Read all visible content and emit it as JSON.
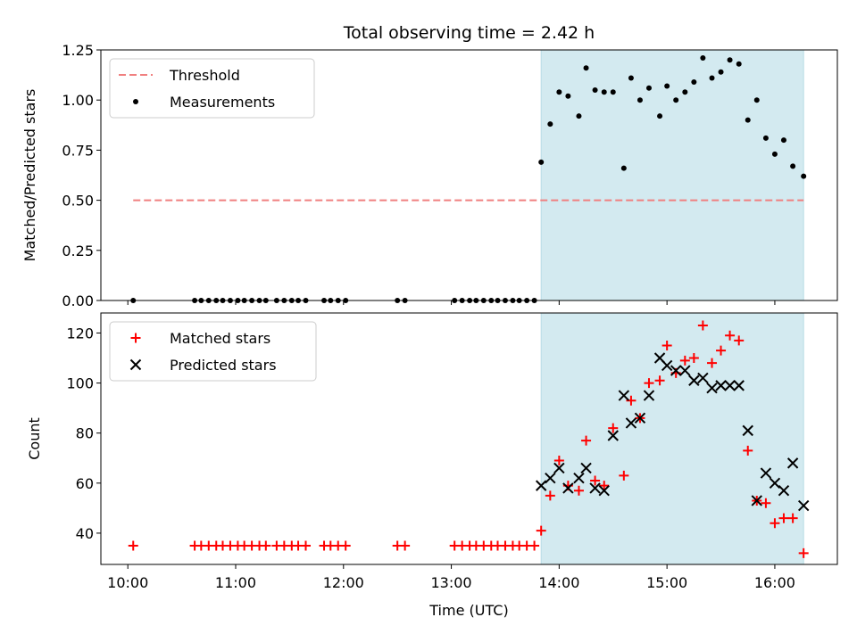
{
  "chart_data": [
    {
      "type": "scatter",
      "title": "Total observing time = 2.42 h",
      "xlabel": "",
      "ylabel": "Matched/Predicted stars",
      "ylim": [
        0,
        1.25
      ],
      "yticks": [
        "0.00",
        "0.25",
        "0.50",
        "0.75",
        "1.00",
        "1.25"
      ],
      "xlim_hours": [
        9.75,
        16.58
      ],
      "shaded_span_hours": [
        13.833,
        16.267
      ],
      "shade_color": "#d3eaf0",
      "legend": {
        "placement": "upper left",
        "items": [
          "Threshold",
          "Measurements"
        ]
      },
      "threshold": {
        "name": "Threshold",
        "value": 0.5,
        "x_from_hours": 10.05,
        "x_to_hours": 16.267,
        "color": "#f08080",
        "style": "dashed"
      },
      "series": [
        {
          "name": "Measurements",
          "color": "#000000",
          "marker": "dot",
          "points": [
            [
              10.05,
              0.0
            ],
            [
              10.62,
              0.0
            ],
            [
              10.68,
              0.0
            ],
            [
              10.75,
              0.0
            ],
            [
              10.82,
              0.0
            ],
            [
              10.88,
              0.0
            ],
            [
              10.95,
              0.0
            ],
            [
              11.02,
              0.0
            ],
            [
              11.08,
              0.0
            ],
            [
              11.15,
              0.0
            ],
            [
              11.22,
              0.0
            ],
            [
              11.28,
              0.0
            ],
            [
              11.38,
              0.0
            ],
            [
              11.45,
              0.0
            ],
            [
              11.52,
              0.0
            ],
            [
              11.58,
              0.0
            ],
            [
              11.65,
              0.0
            ],
            [
              11.82,
              0.0
            ],
            [
              11.88,
              0.0
            ],
            [
              11.95,
              0.0
            ],
            [
              12.02,
              0.0
            ],
            [
              12.5,
              0.0
            ],
            [
              12.57,
              0.0
            ],
            [
              13.03,
              0.0
            ],
            [
              13.1,
              0.0
            ],
            [
              13.17,
              0.0
            ],
            [
              13.23,
              0.0
            ],
            [
              13.3,
              0.0
            ],
            [
              13.37,
              0.0
            ],
            [
              13.43,
              0.0
            ],
            [
              13.5,
              0.0
            ],
            [
              13.57,
              0.0
            ],
            [
              13.63,
              0.0
            ],
            [
              13.7,
              0.0
            ],
            [
              13.77,
              0.0
            ],
            [
              13.833,
              0.69
            ],
            [
              13.917,
              0.88
            ],
            [
              14.0,
              1.04
            ],
            [
              14.083,
              1.02
            ],
            [
              14.183,
              0.92
            ],
            [
              14.25,
              1.16
            ],
            [
              14.333,
              1.05
            ],
            [
              14.417,
              1.04
            ],
            [
              14.5,
              1.04
            ],
            [
              14.6,
              0.66
            ],
            [
              14.667,
              1.11
            ],
            [
              14.75,
              1.0
            ],
            [
              14.833,
              1.06
            ],
            [
              14.933,
              0.92
            ],
            [
              15.0,
              1.07
            ],
            [
              15.083,
              1.0
            ],
            [
              15.167,
              1.04
            ],
            [
              15.25,
              1.09
            ],
            [
              15.333,
              1.21
            ],
            [
              15.417,
              1.11
            ],
            [
              15.5,
              1.14
            ],
            [
              15.583,
              1.2
            ],
            [
              15.667,
              1.18
            ],
            [
              15.75,
              0.9
            ],
            [
              15.833,
              1.0
            ],
            [
              15.917,
              0.81
            ],
            [
              16.0,
              0.73
            ],
            [
              16.083,
              0.8
            ],
            [
              16.167,
              0.67
            ],
            [
              16.267,
              0.62
            ]
          ]
        }
      ]
    },
    {
      "type": "scatter",
      "title": "",
      "xlabel": "Time (UTC)",
      "ylabel": "Count",
      "ylim": [
        27.5,
        128
      ],
      "yticks": [
        "40",
        "60",
        "80",
        "100",
        "120"
      ],
      "xticks": [
        "10:00",
        "11:00",
        "12:00",
        "13:00",
        "14:00",
        "15:00",
        "16:00"
      ],
      "xlim_hours": [
        9.75,
        16.58
      ],
      "shaded_span_hours": [
        13.833,
        16.267
      ],
      "shade_color": "#d3eaf0",
      "legend": {
        "placement": "upper left",
        "items": [
          "Matched stars",
          "Predicted stars"
        ]
      },
      "series": [
        {
          "name": "Matched stars",
          "color": "#ff0000",
          "marker": "plus",
          "points": [
            [
              10.05,
              35
            ],
            [
              10.62,
              35
            ],
            [
              10.68,
              35
            ],
            [
              10.75,
              35
            ],
            [
              10.82,
              35
            ],
            [
              10.88,
              35
            ],
            [
              10.95,
              35
            ],
            [
              11.02,
              35
            ],
            [
              11.08,
              35
            ],
            [
              11.15,
              35
            ],
            [
              11.22,
              35
            ],
            [
              11.28,
              35
            ],
            [
              11.38,
              35
            ],
            [
              11.45,
              35
            ],
            [
              11.52,
              35
            ],
            [
              11.58,
              35
            ],
            [
              11.65,
              35
            ],
            [
              11.82,
              35
            ],
            [
              11.88,
              35
            ],
            [
              11.95,
              35
            ],
            [
              12.02,
              35
            ],
            [
              12.5,
              35
            ],
            [
              12.57,
              35
            ],
            [
              13.03,
              35
            ],
            [
              13.1,
              35
            ],
            [
              13.17,
              35
            ],
            [
              13.23,
              35
            ],
            [
              13.3,
              35
            ],
            [
              13.37,
              35
            ],
            [
              13.43,
              35
            ],
            [
              13.5,
              35
            ],
            [
              13.57,
              35
            ],
            [
              13.63,
              35
            ],
            [
              13.7,
              35
            ],
            [
              13.77,
              35
            ],
            [
              13.833,
              41
            ],
            [
              13.917,
              55
            ],
            [
              14.0,
              69
            ],
            [
              14.083,
              59
            ],
            [
              14.183,
              57
            ],
            [
              14.25,
              77
            ],
            [
              14.333,
              61
            ],
            [
              14.417,
              59
            ],
            [
              14.5,
              82
            ],
            [
              14.6,
              63
            ],
            [
              14.667,
              93
            ],
            [
              14.75,
              86
            ],
            [
              14.833,
              100
            ],
            [
              14.933,
              101
            ],
            [
              15.0,
              115
            ],
            [
              15.083,
              104
            ],
            [
              15.167,
              109
            ],
            [
              15.25,
              110
            ],
            [
              15.333,
              123
            ],
            [
              15.417,
              108
            ],
            [
              15.5,
              113
            ],
            [
              15.583,
              119
            ],
            [
              15.667,
              117
            ],
            [
              15.75,
              73
            ],
            [
              15.833,
              53
            ],
            [
              15.917,
              52
            ],
            [
              16.0,
              44
            ],
            [
              16.083,
              46
            ],
            [
              16.167,
              46
            ],
            [
              16.267,
              32
            ]
          ]
        },
        {
          "name": "Predicted stars",
          "color": "#000000",
          "marker": "x",
          "points": [
            [
              13.833,
              59
            ],
            [
              13.917,
              62
            ],
            [
              14.0,
              66
            ],
            [
              14.083,
              58
            ],
            [
              14.183,
              62
            ],
            [
              14.25,
              66
            ],
            [
              14.333,
              58
            ],
            [
              14.417,
              57
            ],
            [
              14.5,
              79
            ],
            [
              14.6,
              95
            ],
            [
              14.667,
              84
            ],
            [
              14.75,
              86
            ],
            [
              14.833,
              95
            ],
            [
              14.933,
              110
            ],
            [
              15.0,
              107
            ],
            [
              15.083,
              105
            ],
            [
              15.167,
              105
            ],
            [
              15.25,
              101
            ],
            [
              15.333,
              102
            ],
            [
              15.417,
              98
            ],
            [
              15.5,
              99
            ],
            [
              15.583,
              99
            ],
            [
              15.667,
              99
            ],
            [
              15.75,
              81
            ],
            [
              15.833,
              53
            ],
            [
              15.917,
              64
            ],
            [
              16.0,
              60
            ],
            [
              16.083,
              57
            ],
            [
              16.167,
              68
            ],
            [
              16.267,
              51
            ]
          ]
        }
      ]
    }
  ]
}
